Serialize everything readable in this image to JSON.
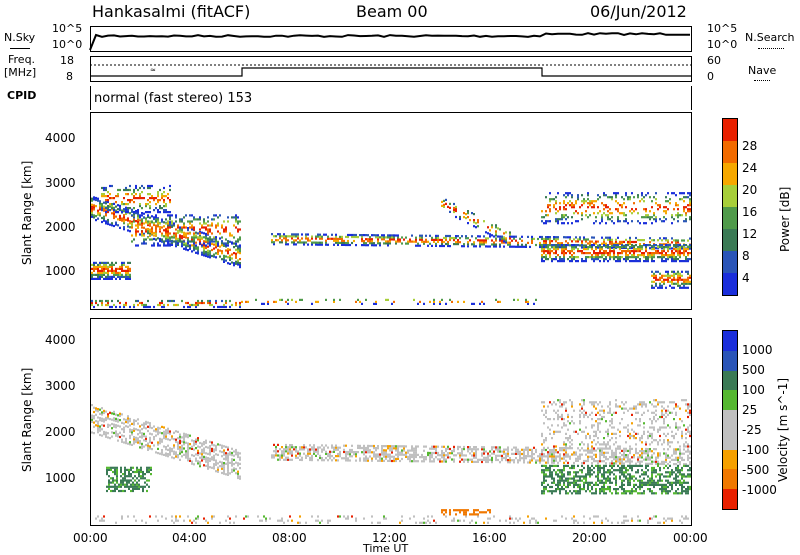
{
  "header": {
    "station": "Hankasalmi (fitACF)",
    "beam": "Beam 00",
    "date": "06/Jun/2012"
  },
  "top_panels": {
    "nsky_label": "N.Sky",
    "nsky_ticks": [
      "10^5",
      "10^0"
    ],
    "nsearch_label": "N.Search",
    "nsearch_ticks": [
      "10^5",
      "10^0"
    ],
    "freq_label_1": "Freq.",
    "freq_label_2": "[MHz]",
    "freq_ticks": [
      "18",
      "8"
    ],
    "nave_label": "Nave",
    "nave_ticks": [
      "60",
      "0"
    ],
    "cpid_label": "CPID",
    "cpid_value": "normal (fast stereo) 153"
  },
  "colors": {
    "power": [
      "#1a2edb",
      "#2a55b8",
      "#3a7a55",
      "#4f9a4a",
      "#a7cf3a",
      "#f6a800",
      "#f26b00",
      "#e82000"
    ],
    "velocity": [
      "#1a2edb",
      "#2a55b8",
      "#3a7a55",
      "#55b830",
      "#c0c0c0",
      "#c0c0c0",
      "#f5a000",
      "#f07800",
      "#e82000"
    ]
  },
  "chart_data": [
    {
      "type": "heatmap",
      "title": "",
      "xlabel": "Time UT",
      "ylabel": "Slant Range [km]",
      "x_ticks": [
        "00:00",
        "04:00",
        "08:00",
        "12:00",
        "16:00",
        "20:00",
        "00:00"
      ],
      "y_ticks": [
        "1000",
        "2000",
        "3000",
        "4000"
      ],
      "ylim": [
        200,
        4600
      ],
      "colorbar_label": "Power [dB]",
      "colorbar_ticks": [
        "4",
        "8",
        "12",
        "16",
        "20",
        "24",
        "28"
      ]
    },
    {
      "type": "heatmap",
      "title": "",
      "xlabel": "Time UT",
      "ylabel": "Slant Range [km]",
      "x_ticks": [
        "00:00",
        "04:00",
        "08:00",
        "12:00",
        "16:00",
        "20:00",
        "00:00"
      ],
      "y_ticks": [
        "1000",
        "2000",
        "3000",
        "4000"
      ],
      "ylim": [
        200,
        4600
      ],
      "colorbar_label": "Velocity [m s^-1]",
      "colorbar_ticks": [
        "1000",
        "500",
        "100",
        "25",
        "-25",
        "-100",
        "-500",
        "-1000"
      ]
    }
  ],
  "xaxis": {
    "label": "Time UT"
  }
}
